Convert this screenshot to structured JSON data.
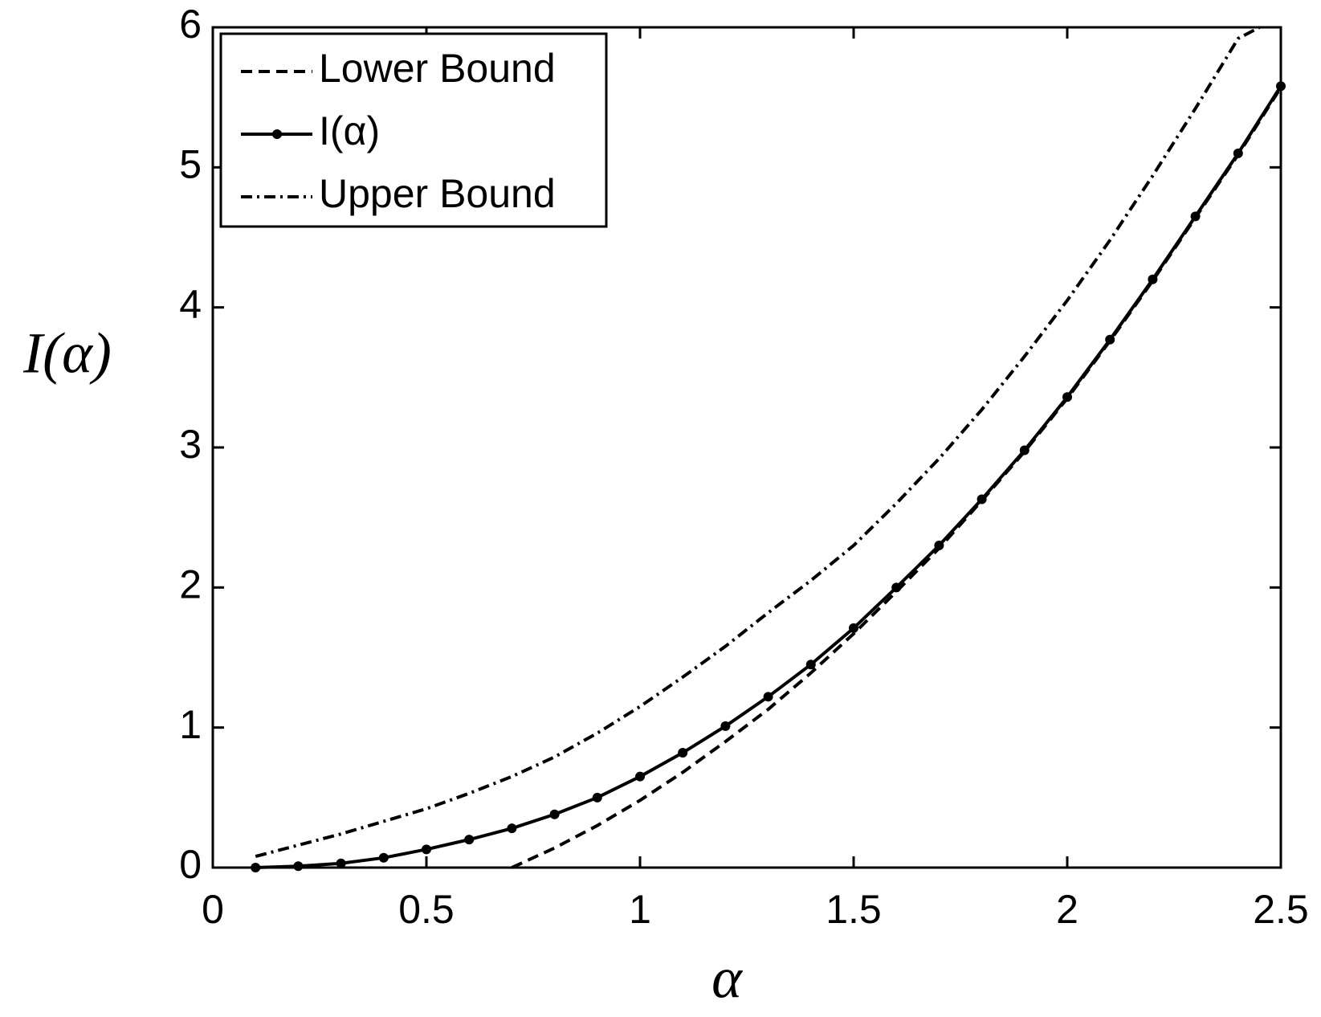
{
  "chart_data": {
    "type": "line",
    "xlabel": "α",
    "ylabel": "I(α)",
    "xlim": [
      0,
      2.5
    ],
    "ylim": [
      0,
      6
    ],
    "xticks": [
      0,
      0.5,
      1,
      1.5,
      2,
      2.5
    ],
    "yticks": [
      0,
      1,
      2,
      3,
      4,
      5,
      6
    ],
    "legend": "upper-left",
    "grid": false,
    "series": [
      {
        "name": "Lower Bound",
        "color": "#000000",
        "line_style": "dashed",
        "marker": false,
        "x": [
          0.7,
          0.8,
          0.9,
          1.0,
          1.1,
          1.2,
          1.3,
          1.4,
          1.5,
          1.6,
          1.7,
          1.8,
          1.9,
          2.0,
          2.1,
          2.2,
          2.3,
          2.4,
          2.5
        ],
        "values": [
          0,
          0.14,
          0.3,
          0.48,
          0.68,
          0.9,
          1.13,
          1.39,
          1.67,
          1.97,
          2.28,
          2.62,
          2.97,
          3.35,
          3.76,
          4.19,
          4.64,
          5.09,
          5.57
        ]
      },
      {
        "name": "I(α)",
        "color": "#000000",
        "line_style": "solid",
        "marker": true,
        "x": [
          0.1,
          0.2,
          0.3,
          0.4,
          0.5,
          0.6,
          0.7,
          0.8,
          0.9,
          1.0,
          1.1,
          1.2,
          1.3,
          1.4,
          1.5,
          1.6,
          1.7,
          1.8,
          1.9,
          2.0,
          2.1,
          2.2,
          2.3,
          2.4,
          2.5
        ],
        "values": [
          0,
          0.01,
          0.03,
          0.07,
          0.13,
          0.2,
          0.28,
          0.38,
          0.5,
          0.65,
          0.82,
          1.01,
          1.22,
          1.45,
          1.71,
          2.0,
          2.3,
          2.63,
          2.98,
          3.36,
          3.77,
          4.2,
          4.65,
          5.1,
          5.58
        ]
      },
      {
        "name": "Upper Bound",
        "color": "#000000",
        "line_style": "dashdot",
        "marker": false,
        "x": [
          0.1,
          0.2,
          0.3,
          0.4,
          0.5,
          0.6,
          0.7,
          0.8,
          0.9,
          1.0,
          1.1,
          1.2,
          1.3,
          1.4,
          1.5,
          1.6,
          1.7,
          1.8,
          1.9,
          2.0,
          2.1,
          2.2,
          2.3,
          2.4,
          2.45
        ],
        "values": [
          0.08,
          0.16,
          0.24,
          0.33,
          0.42,
          0.53,
          0.65,
          0.79,
          0.96,
          1.15,
          1.36,
          1.58,
          1.82,
          2.05,
          2.3,
          2.6,
          2.92,
          3.27,
          3.65,
          4.05,
          4.48,
          4.94,
          5.42,
          5.92,
          6.0
        ]
      }
    ]
  }
}
